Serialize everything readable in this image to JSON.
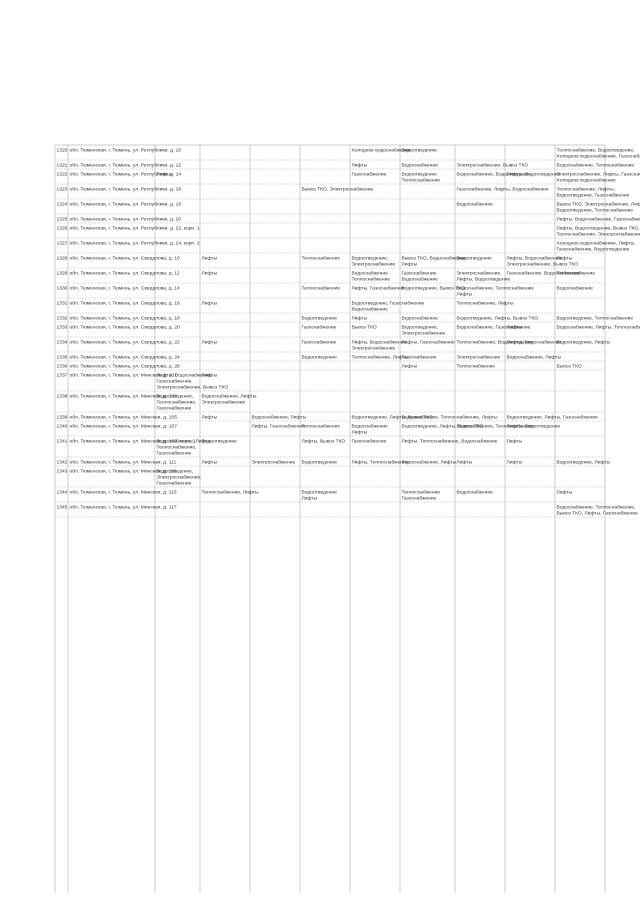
{
  "table": {
    "rows": [
      [
        [
          "1320"
        ],
        [
          "обл. Тюменская, г. Тюмень, ул. Республики, д. 10"
        ],
        null,
        null,
        null,
        null,
        [
          "Холодное водоснабжение"
        ],
        [
          "Водоотведение"
        ],
        null,
        null,
        [
          "Теплоснабжение, Водоотведение,",
          "Холодное водоснабжение, Газоснабжение"
        ]
      ],
      [
        [
          "1321"
        ],
        [
          "обл. Тюменская, г. Тюмень, ул. Республики, д. 12"
        ],
        null,
        null,
        null,
        null,
        [
          "Лифты"
        ],
        [
          "Водоснабжение"
        ],
        [
          "Электроснабжение, Вывоз ТКО"
        ],
        null,
        [
          "Водоснабжение, Теплоснабжение"
        ]
      ],
      [
        [
          "1322"
        ],
        [
          "обл. Тюменская, г. Тюмень, ул. Республики, д. 14"
        ],
        [
          "Лифты"
        ],
        null,
        null,
        null,
        [
          "Газоснабжение"
        ],
        [
          "Водоотведение",
          "Теплоснабжение"
        ],
        [
          "Водоснабжение, Водоотведение"
        ],
        [
          "Лифты, Водоотведение"
        ],
        [
          "Электроснабжение, Лифты, Газоснабжение,",
          "Холодное водоснабжение"
        ]
      ],
      [
        [
          "1323"
        ],
        [
          "обл. Тюменская, г. Тюмень, ул. Республики, д. 16"
        ],
        null,
        null,
        null,
        [
          "Вывоз ТКО, Электроснабжение"
        ],
        null,
        null,
        [
          "Газоснабжение, Лифты, Водоснабжение"
        ],
        null,
        [
          "Теплоснабжение, Лифты,",
          "Водоотведение, Газоснабжение"
        ]
      ],
      [
        [
          "1324"
        ],
        [
          "обл. Тюменская, г. Тюмень, ул. Республики, д. 18"
        ],
        null,
        null,
        null,
        null,
        null,
        null,
        [
          "Водоснабжение"
        ],
        null,
        [
          "Вывоз ТКО, Электроснабжение, Лифты,",
          "Водоотведение, Теплоснабжение"
        ]
      ],
      [
        [
          "1325"
        ],
        [
          "обл. Тюменская, г. Тюмень, ул. Республики, д. 20"
        ],
        null,
        null,
        null,
        null,
        null,
        null,
        null,
        null,
        [
          "Лифты, Водоснабжение, Газоснабжение"
        ]
      ],
      [
        [
          "1326"
        ],
        [
          "обл. Тюменская, г. Тюмень, ул. Республики, д. 22, корп. 1"
        ],
        null,
        null,
        null,
        null,
        null,
        null,
        null,
        null,
        [
          "Лифты, Водоотведение, Вывоз ТКО,",
          "Теплоснабжение, Электроснабжение"
        ]
      ],
      [
        [
          "1327"
        ],
        [
          "обл. Тюменская, г. Тюмень, ул. Республики, д. 24, корп. 2"
        ],
        null,
        null,
        null,
        null,
        null,
        null,
        null,
        null,
        [
          "Холодное водоснабжение, Лифты,",
          "Газоснабжение, Водоотведение"
        ]
      ],
      [
        [
          "1328"
        ],
        [
          "обл. Тюменская, г. Тюмень, ул. Свердлова, д. 10"
        ],
        null,
        [
          "Лифты"
        ],
        null,
        [
          "Теплоснабжение"
        ],
        [
          "Водоотведение,",
          "Электроснабжение"
        ],
        [
          "Вывоз ТКО, Водоснабжение,",
          "Лифты"
        ],
        [
          "Водоотведение"
        ],
        [
          "Лифты, Водоснабжение,",
          "Электроснабжение, Вывоз ТКО"
        ],
        [
          "Лифты"
        ]
      ],
      [
        [
          "1329"
        ],
        [
          "обл. Тюменская, г. Тюмень, ул. Свердлова, д. 12"
        ],
        null,
        [
          "Лифты"
        ],
        null,
        null,
        [
          "Водоснабжение",
          "Теплоснабжение"
        ],
        [
          "Газоснабжение",
          "Водоснабжение"
        ],
        [
          "Электроснабжение,",
          "Лифты, Водоотведение"
        ],
        [
          "Газоснабжение, Водоснабжение"
        ],
        [
          "Теплоснабжение"
        ]
      ],
      [
        [
          "1330"
        ],
        [
          "обл. Тюменская, г. Тюмень, ул. Свердлова, д. 14"
        ],
        null,
        null,
        null,
        [
          "Теплоснабжение"
        ],
        [
          "Лифты, Газоснабжение"
        ],
        [
          "Водоотведение, Вывоз ТКО"
        ],
        [
          "Водоснабжение, Теплоснабжение",
          "Лифты"
        ],
        null,
        [
          "Водоснабжение"
        ]
      ],
      [
        [
          "1331"
        ],
        [
          "обл. Тюменская, г. Тюмень, ул. Свердлова, д. 16"
        ],
        null,
        [
          "Лифты"
        ],
        null,
        null,
        [
          "Водоотведение, Газоснабжение",
          "Водоснабжение"
        ],
        null,
        [
          "Теплоснабжение, Лифты"
        ],
        null,
        null
      ],
      [
        [
          "1332"
        ],
        [
          "обл. Тюменская, г. Тюмень, ул. Свердлова, д. 18"
        ],
        null,
        null,
        null,
        [
          "Водоотведение"
        ],
        [
          "Лифты"
        ],
        [
          "Водоснабжение"
        ],
        [
          "Водоотведение, Лифты, Вывоз ТКО"
        ],
        null,
        [
          "Водоотведение, Теплоснабжение"
        ]
      ],
      [
        [
          "1333"
        ],
        [
          "обл. Тюменская, г. Тюмень, ул. Свердлова, д. 20"
        ],
        null,
        null,
        null,
        [
          "Газоснабжение"
        ],
        [
          "Вывоз ТКО"
        ],
        [
          "Водоотведение,",
          "Электроснабжение"
        ],
        [
          "Водоснабжение, Газоснабжение"
        ],
        [
          "Лифты"
        ],
        [
          "Водоснабжение, Лифты, Теплоснабжение"
        ]
      ],
      [
        [
          "1334"
        ],
        [
          "обл. Тюменская, г. Тюмень, ул. Свердлова, д. 22"
        ],
        null,
        [
          "Лифты"
        ],
        null,
        [
          "Газоснабжение"
        ],
        [
          "Лифты, Водоснабжение,",
          "Электроснабжение"
        ],
        [
          "Лифты, Газоснабжение"
        ],
        [
          "Теплоснабжение, Водоотведение"
        ],
        [
          "Лифты, Водоснабжение"
        ],
        [
          "Водоотведение, Лифты"
        ]
      ],
      [
        [
          "1335"
        ],
        [
          "обл. Тюменская, г. Тюмень, ул. Свердлова, д. 24"
        ],
        null,
        null,
        null,
        [
          "Водоотведение"
        ],
        [
          "Теплоснабжение, Лифты"
        ],
        [
          "Газоснабжение"
        ],
        [
          "Электроснабжение"
        ],
        [
          "Водоснабжение, Лифты"
        ],
        null
      ],
      [
        [
          "1336"
        ],
        [
          "обл. Тюменская, г. Тюмень, ул. Свердлова, д. 26"
        ],
        null,
        null,
        null,
        null,
        null,
        [
          "Лифты"
        ],
        [
          "Теплоснабжение"
        ],
        null,
        [
          "Вывоз ТКО"
        ]
      ],
      [
        [
          "1337"
        ],
        [
          "обл. Тюменская, г. Тюмень, ул. Минская, д. 101"
        ],
        [
          "Лифты, Водоснабжение,",
          "Газоснабжение,",
          "Электроснабжение, Вывоз ТКО"
        ],
        [
          "Лифты"
        ],
        null,
        null,
        null,
        null,
        null,
        null,
        null
      ],
      [
        [
          "1338"
        ],
        [
          "обл. Тюменская, г. Тюмень, ул. Минская, д. 103"
        ],
        [
          "Водоотведение,",
          "Теплоснабжение,",
          "Газоснабжение"
        ],
        [
          "Водоснабжение, Лифты,",
          "Электроснабжение"
        ],
        null,
        null,
        null,
        null,
        null,
        null,
        null
      ],
      [
        [
          "1339"
        ],
        [
          "обл. Тюменская, г. Тюмень, ул. Минская, д. 105"
        ],
        null,
        [
          "Лифты"
        ],
        [
          "Водоснабжение, Лифты"
        ],
        null,
        [
          "Водоотведение, Лифты, Вывоз ТКО"
        ],
        [
          "Водоснабжение, Теплоснабжение, Лифты"
        ],
        null,
        [
          "Водоотведение, Лифты, Газоснабжение"
        ],
        null
      ],
      [
        [
          "1340"
        ],
        [
          "обл. Тюменская, г. Тюмень, ул. Минская, д. 107"
        ],
        null,
        null,
        [
          "Лифты, Газоснабжение"
        ],
        [
          "Теплоснабжение"
        ],
        [
          "Водоснабжение",
          "Лифты"
        ],
        [
          "Водоотведение, Лифты, Вывоз ТКО"
        ],
        [
          "Водоснабжение, Теплоснабжение"
        ],
        [
          "Лифты, Водоотведение"
        ],
        null
      ],
      [
        [
          "1341"
        ],
        [
          "обл. Тюменская, г. Тюмень, ул. Минская, д. 109, корп. 1"
        ],
        [
          "Водоснабжение, Лифты,",
          "Теплоснабжение,",
          "Газоснабжение"
        ],
        [
          "Водоотведение"
        ],
        null,
        [
          "Лифты, Вывоз ТКО"
        ],
        [
          "Газоснабжение"
        ],
        [
          "Лифты, Теплоснабжение, Водоснабжение"
        ],
        null,
        [
          "Лифты"
        ],
        null
      ],
      [
        [
          "1342"
        ],
        [
          "обл. Тюменская, г. Тюмень, ул. Минская, д. 111"
        ],
        null,
        [
          "Лифты"
        ],
        [
          "Электроснабжение"
        ],
        [
          "Водоотведение"
        ],
        [
          "Лифты, Теплоснабжение"
        ],
        [
          "Водоснабжение, Лифты"
        ],
        [
          "Лифты"
        ],
        [
          "Лифты"
        ],
        [
          "Водоотведение, Лифты"
        ]
      ],
      [
        [
          "1343"
        ],
        [
          "обл. Тюменская, г. Тюмень, ул. Минская, д. 113"
        ],
        [
          "Водоотведение,",
          "Электроснабжение,",
          "Газоснабжение"
        ],
        null,
        null,
        null,
        null,
        null,
        null,
        null,
        null
      ],
      [
        [
          "1344"
        ],
        [
          "обл. Тюменская, г. Тюмень, ул. Минская, д. 115"
        ],
        null,
        [
          "Теплоснабжение, Лифты"
        ],
        null,
        [
          "Водоотведение",
          "Лифты"
        ],
        null,
        [
          "Теплоснабжение",
          "Газоснабжение"
        ],
        [
          "Водоснабжение"
        ],
        null,
        [
          "Лифты"
        ]
      ],
      [
        [
          "1345"
        ],
        [
          "обл. Тюменская, г. Тюмень, ул. Минская, д. 117"
        ],
        null,
        null,
        null,
        null,
        null,
        null,
        null,
        null,
        [
          "Водоснабжение, Теплоснабжение,",
          "Вывоз ТКО, Лифты, Газоснабжение"
        ]
      ]
    ]
  }
}
